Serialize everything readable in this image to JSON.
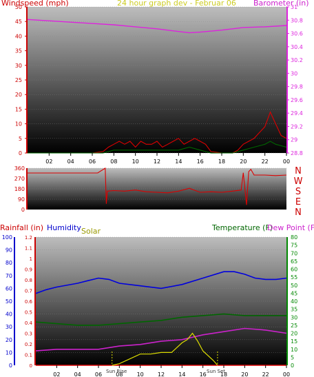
{
  "colors": {
    "windspeed": "#dd0000",
    "gust": "#006600",
    "barometer": "#dd22dd",
    "wind_direction": "#dd0000",
    "rainfall": "#dd0000",
    "humidity": "#0000dd",
    "solar": "#dddd00",
    "temperature": "#006600",
    "dew_point": "#cc22cc",
    "axis_left": "#cc0000",
    "axis_humidity": "#0000cc",
    "axis_solar": "#999900",
    "axis_right": "#008800",
    "plot_top": "#bdbdbd",
    "plot_bottom": "#000000"
  },
  "chart_data": [
    {
      "type": "line",
      "title": "24 hour graph dev - Februar 06",
      "ylabel_left": "Windspeed (mph)",
      "ylabel_right": "Barometer (in)",
      "ylim_left": [
        0,
        50
      ],
      "ylim_right": [
        28.8,
        31
      ],
      "yticks_left": [
        "0",
        "5",
        "10",
        "15",
        "20",
        "25",
        "30",
        "35",
        "40",
        "45",
        "50"
      ],
      "yticks_right": [
        "28.8",
        "29",
        "29.2",
        "29.4",
        "29.6",
        "29.8",
        "30",
        "30.2",
        "30.4",
        "30.6",
        "30.8",
        "31"
      ],
      "x_ticks": [
        "02",
        "04",
        "06",
        "08",
        "10",
        "12",
        "14",
        "16",
        "18",
        "20",
        "22",
        "00"
      ],
      "x_hours": [
        0,
        24
      ],
      "series": [
        {
          "name": "Windspeed",
          "color_key": "windspeed",
          "x": [
            0,
            1,
            2,
            3,
            4,
            5,
            6,
            7,
            7.5,
            8,
            8.5,
            9,
            9.5,
            10,
            10.5,
            11,
            11.5,
            12,
            12.5,
            13,
            13.5,
            14,
            14.5,
            15,
            15.5,
            16,
            16.5,
            17,
            18,
            19,
            19.5,
            20,
            20.5,
            21,
            21.5,
            22,
            22.5,
            23,
            23.5,
            24
          ],
          "values": [
            0,
            0,
            0,
            0,
            0,
            0,
            0,
            0.5,
            2,
            3,
            4,
            3,
            4,
            2,
            4,
            3,
            3,
            4,
            2,
            3,
            4,
            5,
            3,
            4,
            5,
            4,
            3,
            0.5,
            0,
            0,
            1,
            3,
            4,
            5,
            7,
            9,
            14,
            10,
            6,
            5
          ]
        },
        {
          "name": "Gust",
          "color_key": "gust",
          "x": [
            0,
            7,
            8,
            9,
            10,
            11,
            12,
            13,
            14,
            15,
            16,
            17,
            19,
            20,
            21,
            22,
            22.5,
            23,
            24
          ],
          "values": [
            0,
            0,
            1,
            1,
            1,
            1,
            1,
            1,
            1,
            2,
            1,
            0,
            0,
            1,
            2,
            3,
            4,
            3,
            2
          ]
        },
        {
          "name": "Barometer",
          "axis": "right",
          "color_key": "barometer",
          "x": [
            0,
            2,
            4,
            6,
            8,
            10,
            12,
            14,
            15,
            16,
            18,
            20,
            22,
            24
          ],
          "values": [
            30.81,
            30.79,
            30.77,
            30.75,
            30.73,
            30.7,
            30.67,
            30.63,
            30.61,
            30.62,
            30.65,
            30.69,
            30.7,
            30.72
          ]
        }
      ]
    },
    {
      "type": "line",
      "ylim": [
        0,
        360
      ],
      "yticks": [
        "0",
        "90",
        "180",
        "270",
        "360"
      ],
      "compass_labels": [
        "N",
        "W",
        "S",
        "E",
        "N"
      ],
      "series": [
        {
          "name": "Wind Direction",
          "color_key": "wind_direction",
          "x": [
            0,
            6.5,
            7.2,
            7.3,
            7.4,
            8,
            9,
            10,
            11,
            12,
            13,
            14,
            15,
            16,
            17,
            18,
            19,
            19.8,
            20,
            20.3,
            20.5,
            20.7,
            21,
            22,
            23,
            24
          ],
          "values": [
            318,
            318,
            360,
            50,
            160,
            165,
            160,
            170,
            155,
            150,
            145,
            160,
            185,
            150,
            155,
            150,
            160,
            170,
            320,
            40,
            330,
            350,
            300,
            300,
            295,
            300
          ]
        }
      ]
    },
    {
      "type": "line",
      "ylabel_left": "Rainfall (in)",
      "ylabel_humidity": "Humidity",
      "ylabel_solar": "Solar",
      "ylabel_right": "Temperature (F)",
      "ylabel_right2": "Dew Point (F)",
      "ylim_rain": [
        0,
        1.2
      ],
      "ylim_humidity": [
        0,
        100
      ],
      "ylim_temp": [
        0,
        80
      ],
      "yticks_rain": [
        "0",
        "0.1",
        "0.2",
        "0.3",
        "0.4",
        "0.5",
        "0.6",
        "0.7",
        "0.8",
        "0.9",
        "1",
        "1.1",
        "1.2"
      ],
      "yticks_humidity": [
        "0",
        "10",
        "20",
        "30",
        "40",
        "50",
        "60",
        "70",
        "80",
        "90",
        "100"
      ],
      "yticks_temp": [
        "0",
        "5",
        "10",
        "15",
        "20",
        "25",
        "30",
        "35",
        "40",
        "45",
        "50",
        "55",
        "60",
        "65",
        "70",
        "75",
        "80"
      ],
      "x_ticks": [
        "02",
        "04",
        "06",
        "08",
        "10",
        "12",
        "14",
        "16",
        "18",
        "20",
        "22",
        "00"
      ],
      "annotations": [
        "Sun Rise",
        "Sun Set"
      ],
      "series": [
        {
          "name": "Rainfall",
          "color_key": "rainfall",
          "x": [
            0,
            24
          ],
          "values": [
            0,
            0
          ]
        },
        {
          "name": "Humidity",
          "color_key": "humidity",
          "x": [
            0,
            1,
            2,
            4,
            5,
            6,
            7,
            8,
            10,
            12,
            14,
            16,
            18,
            19,
            20,
            21,
            22,
            23,
            24
          ],
          "values": [
            56,
            59,
            61,
            64,
            66,
            68,
            67,
            64,
            62,
            60,
            63,
            68,
            73,
            73,
            71,
            68,
            67,
            67,
            68
          ]
        },
        {
          "name": "Temperature",
          "color_key": "temperature",
          "x": [
            0,
            2,
            4,
            6,
            8,
            10,
            12,
            14,
            16,
            18,
            20,
            22,
            24
          ],
          "values": [
            27,
            26,
            25,
            25,
            26,
            27,
            28,
            30,
            31,
            32,
            31,
            31,
            31
          ]
        },
        {
          "name": "Dew Point",
          "color_key": "dew_point",
          "x": [
            0,
            2,
            4,
            6,
            8,
            10,
            12,
            14,
            16,
            18,
            20,
            22,
            24
          ],
          "values": [
            9,
            10,
            10,
            10,
            12,
            13,
            15,
            16,
            19,
            21,
            23,
            22,
            20
          ]
        },
        {
          "name": "Solar",
          "color_key": "solar",
          "x": [
            7.3,
            8,
            9,
            10,
            11,
            12,
            13,
            14,
            14.5,
            15,
            15.5,
            16,
            17,
            17.4
          ],
          "values": [
            0,
            1,
            4,
            7,
            7,
            8,
            8,
            14,
            16,
            20,
            15,
            9,
            3,
            0
          ]
        }
      ]
    }
  ]
}
